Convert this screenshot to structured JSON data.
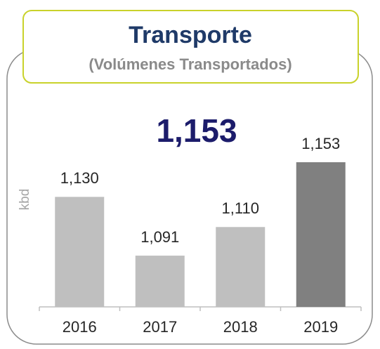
{
  "chart_data": {
    "type": "bar",
    "title": "Transporte",
    "subtitle": "(Volúmenes Transportados)",
    "annotation": "1,153",
    "ylabel": "kbd",
    "categories": [
      "2016",
      "2017",
      "2018",
      "2019"
    ],
    "values": [
      1130,
      1091,
      1110,
      1153
    ],
    "value_labels": [
      "1,130",
      "1,091",
      "1,110",
      "1,153"
    ],
    "colors": [
      "#bfbfbf",
      "#bfbfbf",
      "#bfbfbf",
      "#808080"
    ],
    "ylim": [
      1057,
      1160
    ]
  }
}
